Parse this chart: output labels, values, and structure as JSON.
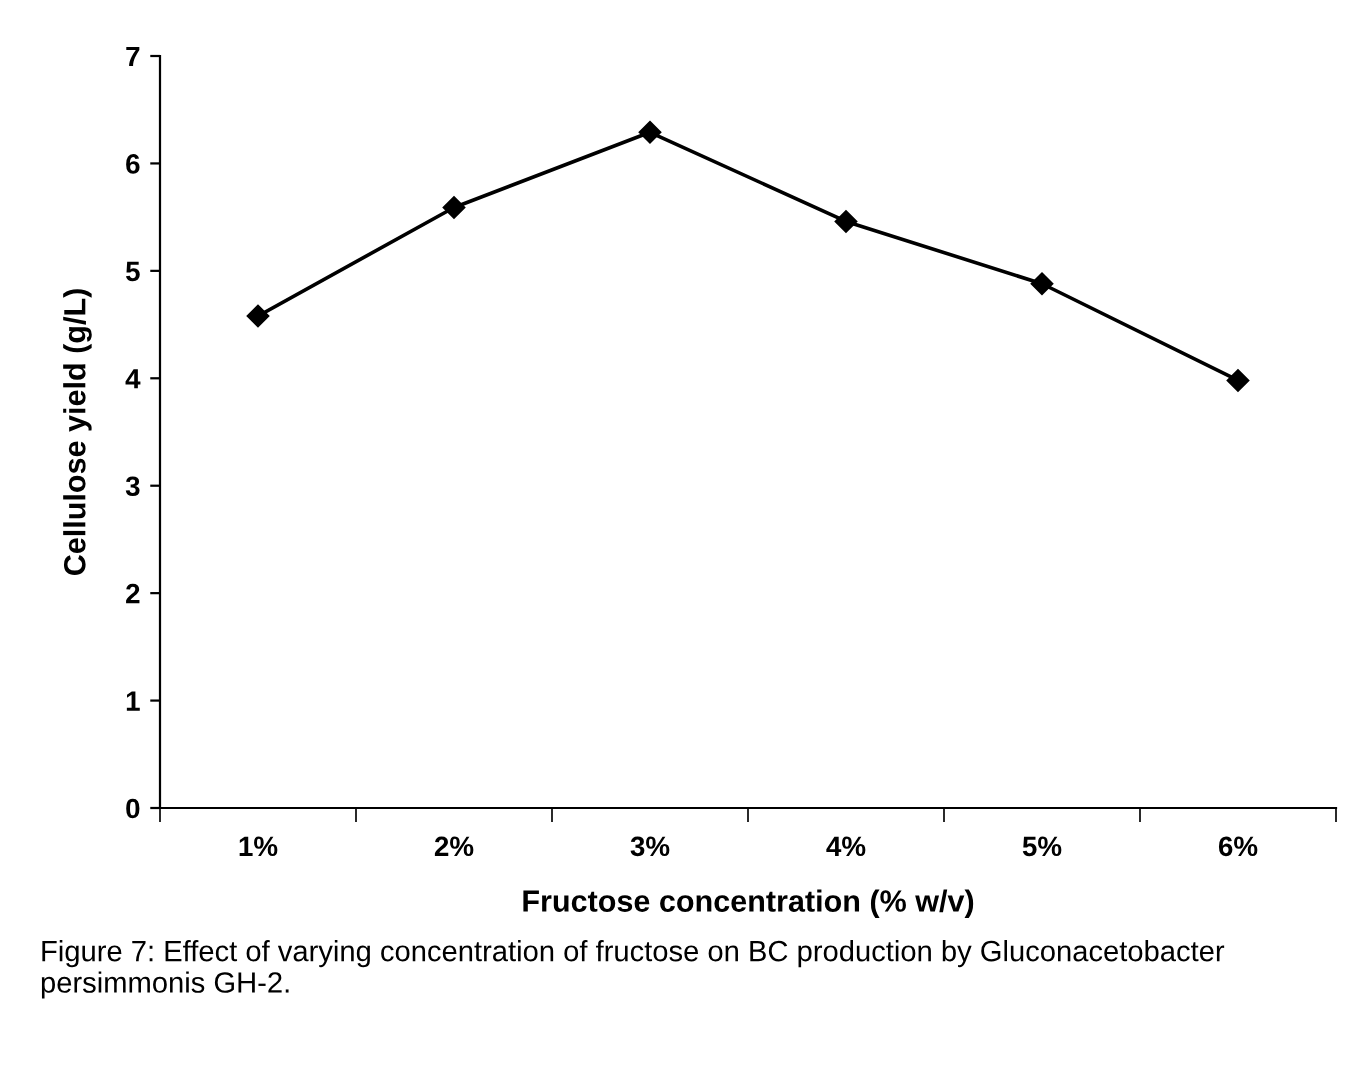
{
  "chart_data": {
    "type": "line",
    "xlabel": "Fructose concentration (% w/v)",
    "ylabel": "Cellulose yield (g/L)",
    "categories": [
      "1%",
      "2%",
      "3%",
      "4%",
      "5%",
      "6%"
    ],
    "series": [
      {
        "color": "#000000",
        "values": [
          4.58,
          5.59,
          6.29,
          5.46,
          4.88,
          3.98
        ]
      }
    ],
    "ylim": [
      0,
      7
    ],
    "yticks": [
      0,
      1,
      2,
      3,
      4,
      5,
      6,
      7
    ],
    "marker": "diamond",
    "line_style": "solid",
    "grid": false,
    "legend": false,
    "annotations": [
      "Figure 7: Effect of varying concentration of fructose on BC production by Gluconacetobacter persimmonis GH-2."
    ]
  }
}
